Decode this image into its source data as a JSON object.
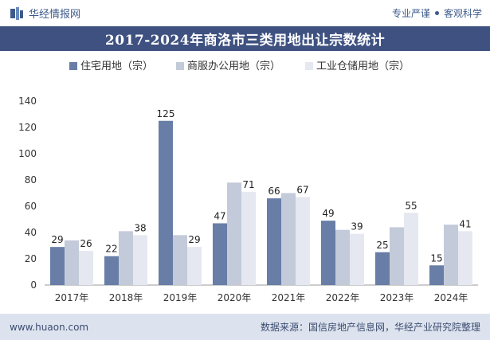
{
  "header": {
    "brand": "华经情报网",
    "tagline_left": "专业严谨",
    "tagline_right": "客观科学"
  },
  "colors": {
    "series": [
      "#687ea7",
      "#c3cad9",
      "#e5e8f0"
    ],
    "title_bg": "#3e5180",
    "footer_bg": "#dde3ee"
  },
  "chart_data": {
    "type": "bar",
    "title": "2017-2024年商洛市三类用地出让宗数统计",
    "categories": [
      "2017年",
      "2018年",
      "2019年",
      "2020年",
      "2021年",
      "2022年",
      "2023年",
      "2024年"
    ],
    "series": [
      {
        "name": "住宅用地（宗）",
        "values": [
          29,
          22,
          125,
          47,
          66,
          49,
          25,
          15
        ],
        "show_labels": true
      },
      {
        "name": "商服办公用地（宗）",
        "values": [
          34,
          41,
          38,
          78,
          70,
          42,
          44,
          46
        ],
        "show_labels": false
      },
      {
        "name": "工业仓储用地（宗）",
        "values": [
          26,
          38,
          29,
          71,
          67,
          39,
          55,
          41
        ],
        "show_labels": true
      }
    ],
    "ylim": [
      0,
      140
    ],
    "yticks": [
      0,
      20,
      40,
      60,
      80,
      100,
      120,
      140
    ],
    "grid": false,
    "legend": "top-center"
  },
  "footer": {
    "website": "www.huaon.com",
    "source": "数据来源：国信房地产信息网，华经产业研究院整理"
  }
}
